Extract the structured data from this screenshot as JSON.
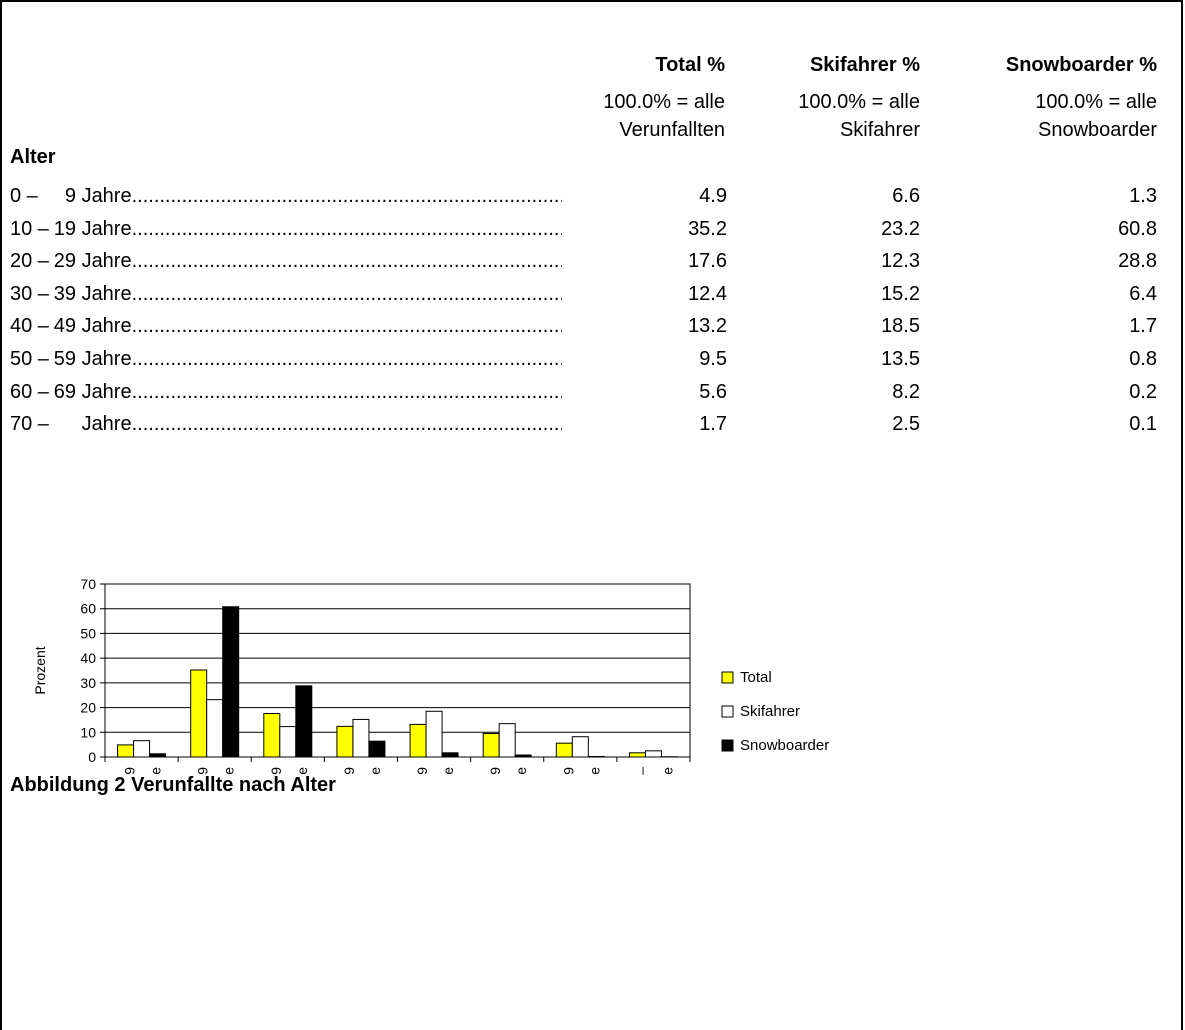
{
  "table": {
    "headers": [
      {
        "title": "Total %",
        "line1": "100.0% = alle",
        "line2": "Verunfallten"
      },
      {
        "title": "Skifahrer %",
        "line1": "100.0% = alle",
        "line2": "Skifahrer"
      },
      {
        "title": "Snowboarder %",
        "line1": "100.0% = alle",
        "line2": "Snowboarder"
      }
    ],
    "section": "Alter",
    "rows": [
      {
        "from": "0 –",
        "to": "9",
        "unit": "Jahre",
        "total": "4.9",
        "ski": "6.6",
        "snow": "1.3"
      },
      {
        "from": "10 –",
        "to": "19",
        "unit": "Jahre",
        "total": "35.2",
        "ski": "23.2",
        "snow": "60.8"
      },
      {
        "from": "20 –",
        "to": "29",
        "unit": "Jahre",
        "total": "17.6",
        "ski": "12.3",
        "snow": "28.8"
      },
      {
        "from": "30 –",
        "to": "39",
        "unit": "Jahre",
        "total": "12.4",
        "ski": "15.2",
        "snow": "6.4"
      },
      {
        "from": "40 –",
        "to": "49",
        "unit": "Jahre",
        "total": "13.2",
        "ski": "18.5",
        "snow": "1.7"
      },
      {
        "from": "50 –",
        "to": "59",
        "unit": "Jahre",
        "total": "9.5",
        "ski": "13.5",
        "snow": "0.8"
      },
      {
        "from": "60 –",
        "to": "69",
        "unit": "Jahre",
        "total": "5.6",
        "ski": "8.2",
        "snow": "0.2"
      },
      {
        "from": "70 –",
        "to": "",
        "unit": "Jahre",
        "total": "1.7",
        "ski": "2.5",
        "snow": "0.1"
      }
    ]
  },
  "chart_data": {
    "type": "bar",
    "title": "",
    "xlabel": "",
    "ylabel": "Prozent",
    "ylim": [
      0,
      70
    ],
    "yticks": [
      0,
      10,
      20,
      30,
      40,
      50,
      60,
      70
    ],
    "grid": true,
    "legend_position": "right",
    "categories": [
      "0 – 9 Jahre",
      "10 – 19 Jahre",
      "20 – 29 Jahre",
      "30 – 39 Jahre",
      "40 – 49 Jahre",
      "50 – 59 Jahre",
      "60 – 69 Jahre",
      "70 – Jahre"
    ],
    "category_lines": [
      [
        "0 – 9",
        "Jahre"
      ],
      [
        "10 – 19",
        "Jahre"
      ],
      [
        "20 – 29",
        "Jahre"
      ],
      [
        "30 – 39",
        "Jahre"
      ],
      [
        "40 – 49",
        "Jahre"
      ],
      [
        "50 – 59",
        "Jahre"
      ],
      [
        "60 – 69",
        "Jahre"
      ],
      [
        "70 –",
        "Jahre"
      ]
    ],
    "series": [
      {
        "name": "Total",
        "color": "#ffff00",
        "values": [
          4.9,
          35.2,
          17.6,
          12.4,
          13.2,
          9.5,
          5.6,
          1.7
        ]
      },
      {
        "name": "Skifahrer",
        "color": "#ffffff",
        "values": [
          6.6,
          23.2,
          12.3,
          15.2,
          18.5,
          13.5,
          8.2,
          2.5
        ]
      },
      {
        "name": "Snowboarder",
        "color": "#000000",
        "values": [
          1.3,
          60.8,
          28.8,
          6.4,
          1.7,
          0.8,
          0.2,
          0.1
        ]
      }
    ]
  },
  "caption": "Abbildung 2 Verunfallte nach Alter"
}
